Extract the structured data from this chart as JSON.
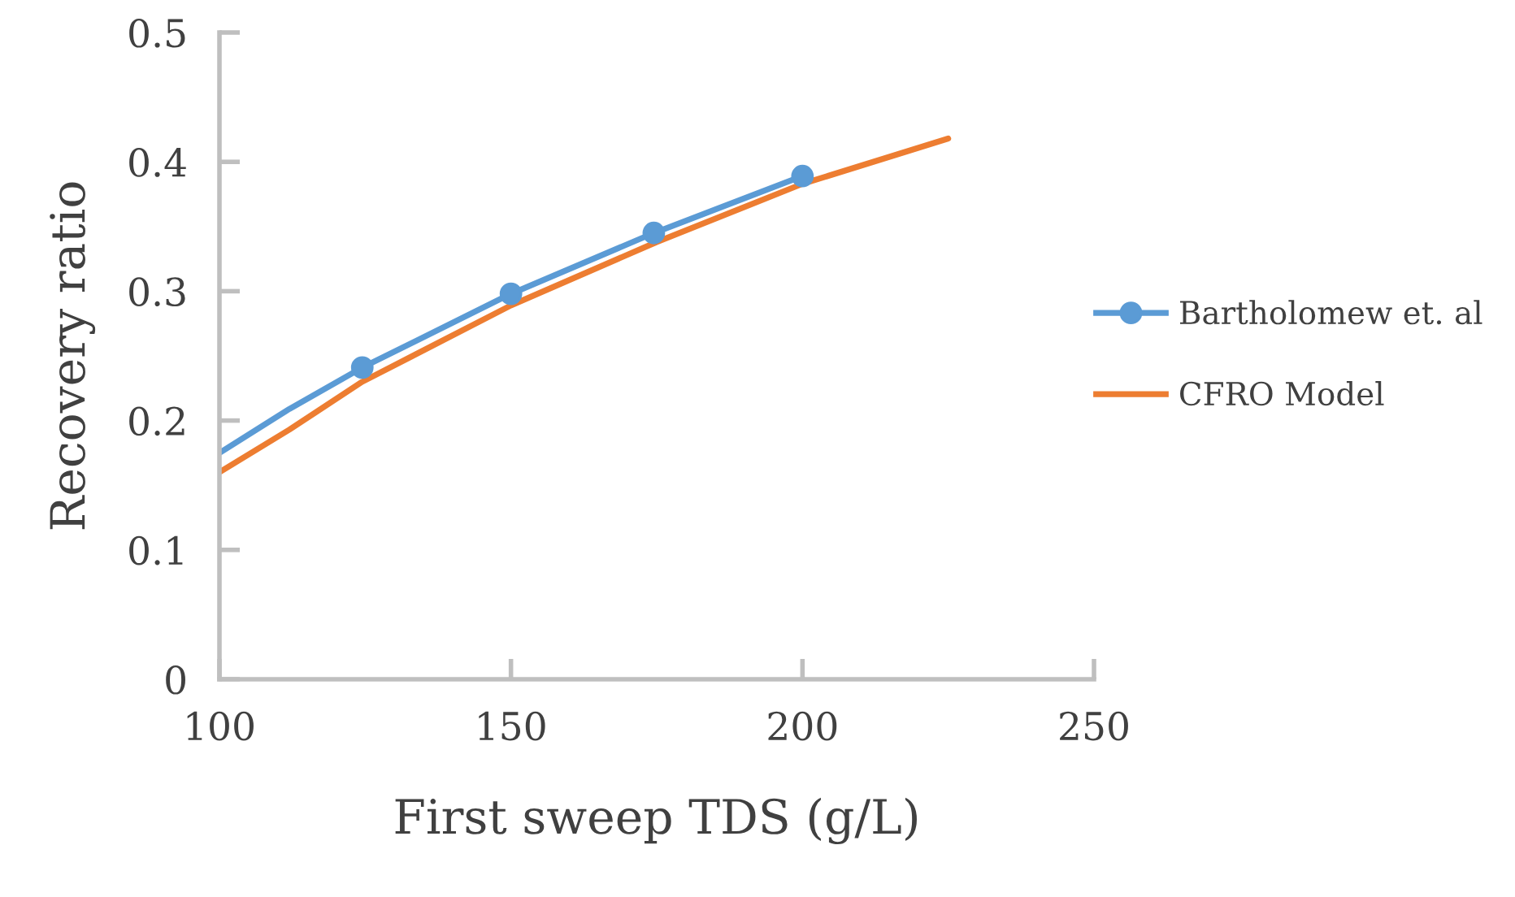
{
  "chart_data": {
    "type": "line",
    "xlabel": "First sweep TDS (g/L)",
    "ylabel": "Recovery ratio",
    "xlim": [
      100,
      250
    ],
    "xticks": [
      100,
      150,
      200,
      250
    ],
    "ylim": [
      0,
      0.5
    ],
    "yticks": [
      0,
      0.1,
      0.2,
      0.3,
      0.4,
      0.5
    ],
    "grid": false,
    "legend": "right",
    "series": [
      {
        "name": "Bartholomew et. al",
        "color": "#5b9bd5",
        "x": [
          100,
          112,
          124.5,
          150,
          174.5,
          200
        ],
        "values": [
          0.175,
          0.209,
          0.241,
          0.298,
          0.345,
          0.389
        ],
        "marker": [
          "none",
          "none",
          "circle",
          "circle",
          "circle",
          "circle"
        ]
      },
      {
        "name": "CFRO Model",
        "color": "#ed7d31",
        "x": [
          100,
          112,
          124.5,
          150,
          175,
          200,
          225
        ],
        "values": [
          0.16,
          0.193,
          0.23,
          0.289,
          0.338,
          0.383,
          0.418
        ],
        "marker": "none"
      }
    ]
  }
}
